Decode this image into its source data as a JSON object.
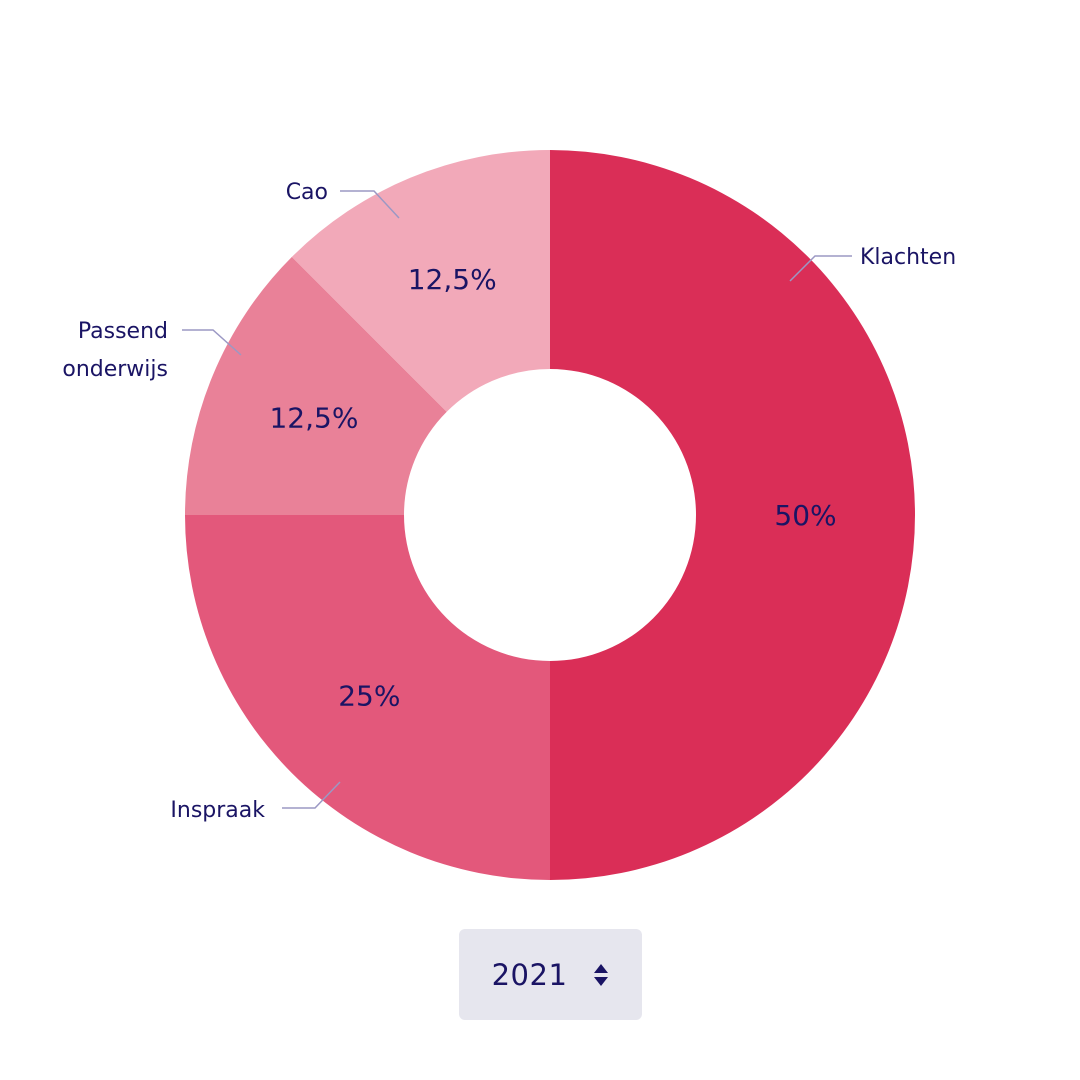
{
  "chart_data": {
    "type": "donut",
    "title": "",
    "categories": [
      "Klachten",
      "Inspraak",
      "Passend onderwijs",
      "Cao"
    ],
    "label_lines": [
      [
        "Klachten"
      ],
      [
        "Inspraak"
      ],
      [
        "Passend",
        "onderwijs"
      ],
      [
        "Cao"
      ]
    ],
    "values": [
      50,
      25,
      12.5,
      12.5
    ],
    "value_labels": [
      "50%",
      "25%",
      "12,5%",
      "12,5%"
    ],
    "colors": [
      "#da2e57",
      "#e3587b",
      "#e98198",
      "#f2a9b9"
    ],
    "label_color": "#1a1464",
    "leader_color": "#9b98c4",
    "start": "top",
    "direction": "clockwise"
  },
  "year_select": {
    "value": "2021",
    "icon": "sort-updown-icon"
  }
}
